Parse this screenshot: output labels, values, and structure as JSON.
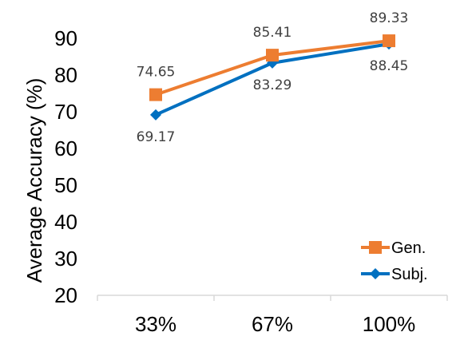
{
  "chart_data": {
    "type": "line",
    "title": "",
    "xlabel": "",
    "ylabel": "Average Accuracy (%)",
    "categories": [
      "33%",
      "67%",
      "100%"
    ],
    "ylim": [
      20,
      90
    ],
    "yticks": [
      20,
      30,
      40,
      50,
      60,
      70,
      80,
      90
    ],
    "grid": false,
    "legend_position": "bottom-right",
    "series": [
      {
        "name": "Gen.",
        "values": [
          74.65,
          85.41,
          89.33
        ],
        "labels": [
          "74.65",
          "85.41",
          "89.33"
        ],
        "color": "#ED7D31",
        "marker": "square"
      },
      {
        "name": "Subj.",
        "values": [
          69.17,
          83.29,
          88.45
        ],
        "labels": [
          "69.17",
          "83.29",
          "88.45"
        ],
        "color": "#0070C0",
        "marker": "diamond"
      }
    ]
  }
}
